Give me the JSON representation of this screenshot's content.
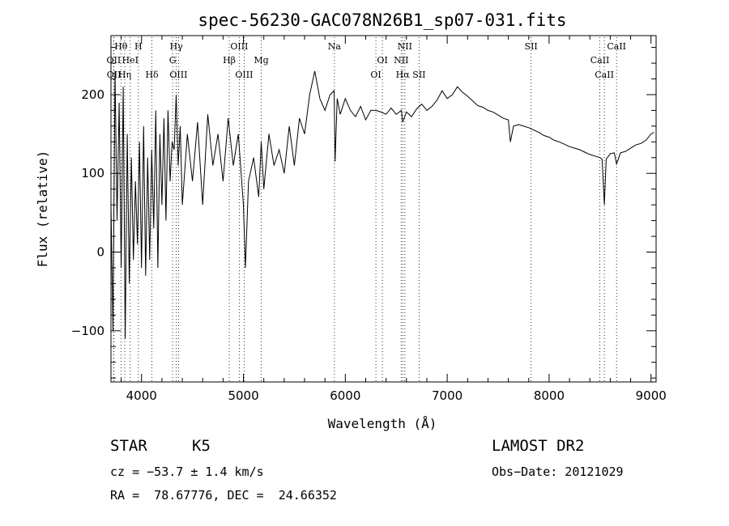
{
  "chart_data": {
    "type": "line",
    "title": "spec-56230-GAC078N26B1_sp07-031.fits",
    "xlabel": "Wavelength (Å)",
    "ylabel": "Flux (relative)",
    "xlim": [
      3700,
      9050
    ],
    "ylim": [
      -165,
      275
    ],
    "xticks": [
      {
        "v": 4000,
        "label": "4000"
      },
      {
        "v": 5000,
        "label": "5000"
      },
      {
        "v": 6000,
        "label": "6000"
      },
      {
        "v": 7000,
        "label": "7000"
      },
      {
        "v": 8000,
        "label": "8000"
      },
      {
        "v": 9000,
        "label": "9000"
      }
    ],
    "yticks": [
      {
        "v": -100,
        "label": "−100"
      },
      {
        "v": 0,
        "label": "0"
      },
      {
        "v": 100,
        "label": "100"
      },
      {
        "v": 200,
        "label": "200"
      }
    ],
    "grid": false,
    "legend": "none",
    "series": [
      {
        "x": [
          3700,
          3720,
          3740,
          3760,
          3780,
          3800,
          3820,
          3840,
          3860,
          3880,
          3900,
          3920,
          3940,
          3960,
          3980,
          4000,
          4020,
          4040,
          4060,
          4080,
          4100,
          4120,
          4140,
          4160,
          4180,
          4200,
          4220,
          4240,
          4260,
          4280,
          4300,
          4320,
          4340,
          4360,
          4380,
          4400,
          4450,
          4500,
          4550,
          4600,
          4650,
          4700,
          4750,
          4800,
          4850,
          4900,
          4950,
          5000,
          5020,
          5050,
          5100,
          5150,
          5175,
          5200,
          5250,
          5300,
          5350,
          5400,
          5450,
          5500,
          5550,
          5600,
          5650,
          5700,
          5750,
          5800,
          5850,
          5890,
          5900,
          5920,
          5950,
          6000,
          6050,
          6100,
          6150,
          6200,
          6250,
          6300,
          6350,
          6400,
          6450,
          6500,
          6550,
          6563,
          6600,
          6650,
          6700,
          6750,
          6800,
          6850,
          6900,
          6950,
          7000,
          7050,
          7100,
          7150,
          7200,
          7250,
          7300,
          7350,
          7400,
          7450,
          7500,
          7550,
          7600,
          7620,
          7650,
          7700,
          7750,
          7800,
          7850,
          7900,
          7950,
          8000,
          8050,
          8100,
          8150,
          8200,
          8250,
          8300,
          8350,
          8400,
          8450,
          8500,
          8520,
          8542,
          8560,
          8600,
          8640,
          8662,
          8700,
          8750,
          8800,
          8850,
          8900,
          8950,
          9000,
          9030
        ],
        "y": [
          60,
          -100,
          230,
          40,
          190,
          -20,
          210,
          -110,
          150,
          -40,
          120,
          -10,
          90,
          10,
          140,
          -20,
          160,
          -30,
          120,
          -10,
          130,
          30,
          180,
          -20,
          150,
          60,
          170,
          40,
          180,
          90,
          140,
          130,
          200,
          110,
          160,
          60,
          150,
          90,
          165,
          60,
          175,
          110,
          150,
          90,
          170,
          110,
          150,
          60,
          -20,
          90,
          120,
          70,
          140,
          80,
          150,
          110,
          130,
          100,
          160,
          110,
          170,
          150,
          200,
          230,
          195,
          180,
          200,
          205,
          115,
          195,
          175,
          195,
          180,
          172,
          185,
          168,
          180,
          180,
          178,
          175,
          183,
          175,
          180,
          165,
          178,
          172,
          182,
          188,
          180,
          185,
          193,
          205,
          195,
          200,
          210,
          203,
          198,
          192,
          186,
          184,
          180,
          178,
          174,
          170,
          168,
          140,
          160,
          162,
          160,
          158,
          155,
          152,
          148,
          146,
          142,
          140,
          137,
          134,
          132,
          130,
          127,
          124,
          122,
          120,
          118,
          60,
          118,
          125,
          126,
          112,
          126,
          128,
          132,
          136,
          138,
          142,
          150,
          152
        ]
      }
    ],
    "lines": [
      {
        "name": "Hθ",
        "x": 3798,
        "row": 0
      },
      {
        "name": "OII",
        "x": 3727,
        "row": 1
      },
      {
        "name": "OII",
        "x": 3729,
        "row": 2
      },
      {
        "name": "H",
        "x": 3969,
        "row": 0
      },
      {
        "name": "HeI",
        "x": 3889,
        "row": 1
      },
      {
        "name": "Hη",
        "x": 3835,
        "row": 2
      },
      {
        "name": "Hδ",
        "x": 4102,
        "row": 2
      },
      {
        "name": "Hγ",
        "x": 4341,
        "row": 0
      },
      {
        "name": "G",
        "x": 4305,
        "row": 1
      },
      {
        "name": "OIII",
        "x": 4363,
        "row": 2
      },
      {
        "name": "OIII",
        "x": 4959,
        "row": 0
      },
      {
        "name": "Hβ",
        "x": 4861,
        "row": 1
      },
      {
        "name": "OIII",
        "x": 5007,
        "row": 2
      },
      {
        "name": "Mg",
        "x": 5175,
        "row": 1
      },
      {
        "name": "Na",
        "x": 5893,
        "row": 0
      },
      {
        "name": "OI",
        "x": 6364,
        "row": 1
      },
      {
        "name": "OI",
        "x": 6300,
        "row": 2
      },
      {
        "name": "NII",
        "x": 6584,
        "row": 0
      },
      {
        "name": "NII",
        "x": 6548,
        "row": 1
      },
      {
        "name": "Hα",
        "x": 6563,
        "row": 2
      },
      {
        "name": "SII",
        "x": 6724,
        "row": 2
      },
      {
        "name": "SII",
        "x": 7823,
        "row": 0
      },
      {
        "name": "CaII",
        "x": 8662,
        "row": 0
      },
      {
        "name": "CaII",
        "x": 8498,
        "row": 1
      },
      {
        "name": "CaII",
        "x": 8542,
        "row": 2
      }
    ]
  },
  "info": {
    "class_label": "STAR",
    "subclass": "K5",
    "survey": "LAMOST DR2",
    "cz": "cz = −53.7 ± 1.4 km/s",
    "obs_date": "Obs−Date: 20121029",
    "radec": "RA =  78.67776, DEC =  24.66352"
  }
}
